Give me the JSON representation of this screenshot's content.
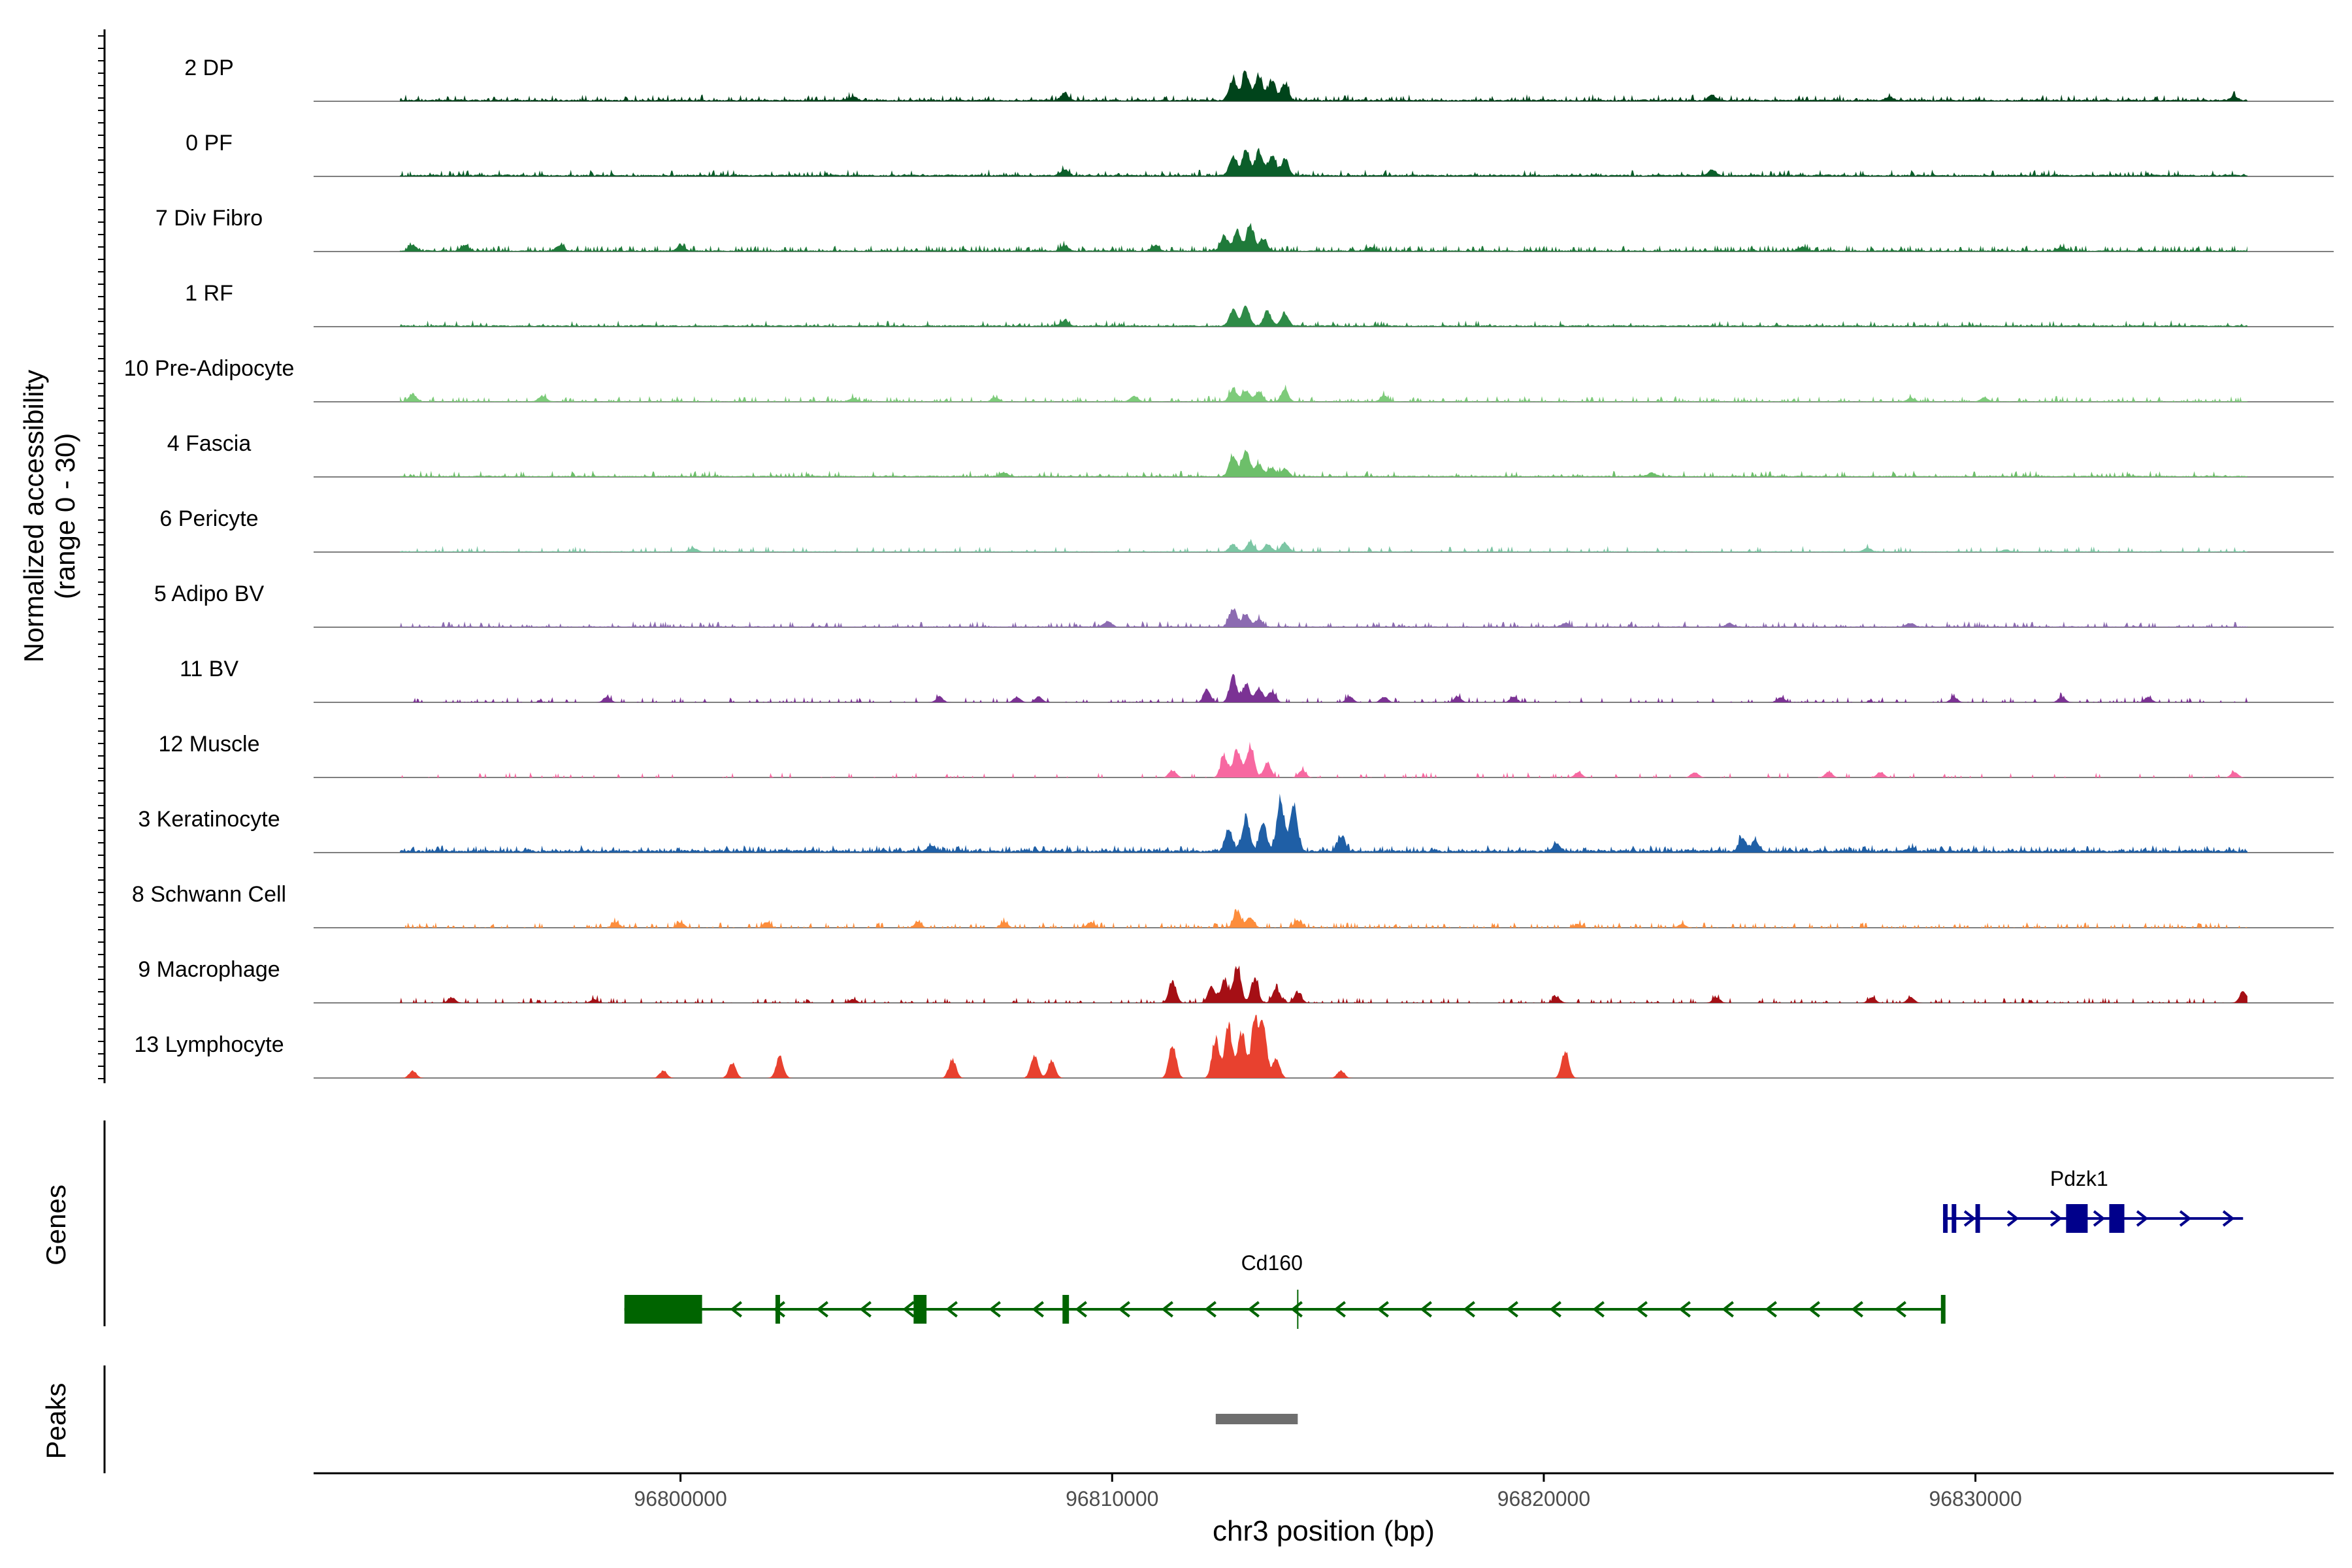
{
  "chart_data": {
    "type": "area",
    "chromosome": "chr3",
    "xlim": [
      96791500,
      96838300
    ],
    "ylim": [
      0,
      30
    ],
    "ylabel_line1": "Normalized accessibility",
    "ylabel_line2": "(range 0 - 30)",
    "xlabel": "chr3 position (bp)",
    "xticks": [
      96800000,
      96810000,
      96820000,
      96830000
    ],
    "xtick_labels": [
      "96800000",
      "96810000",
      "96820000",
      "96830000"
    ],
    "genes_label": "Genes",
    "peaks_label": "Peaks",
    "tracks": [
      {
        "name": "2 DP",
        "color": "#00441b",
        "base": 0.6,
        "noise": 0.18,
        "peaks": [
          [
            96812800,
            12
          ],
          [
            96813100,
            15
          ],
          [
            96813400,
            14
          ],
          [
            96813700,
            11
          ],
          [
            96814000,
            9
          ],
          [
            96808900,
            4
          ],
          [
            96823900,
            3
          ],
          [
            96804000,
            2
          ],
          [
            96828000,
            2
          ],
          [
            96836000,
            2
          ]
        ]
      },
      {
        "name": "0 PF",
        "color": "#0b5e2a",
        "base": 0.6,
        "noise": 0.15,
        "peaks": [
          [
            96812800,
            10
          ],
          [
            96813100,
            14
          ],
          [
            96813400,
            13
          ],
          [
            96813700,
            11
          ],
          [
            96814000,
            9
          ],
          [
            96808900,
            3
          ],
          [
            96823900,
            3
          ]
        ]
      },
      {
        "name": "7 Div Fibro",
        "color": "#1f7a3a",
        "base": 0.4,
        "noise": 0.3,
        "peaks": [
          [
            96812600,
            8
          ],
          [
            96812900,
            10
          ],
          [
            96813200,
            14
          ],
          [
            96813500,
            6
          ],
          [
            96793800,
            3
          ],
          [
            96795000,
            3
          ],
          [
            96797200,
            3
          ],
          [
            96800000,
            3
          ],
          [
            96808900,
            3
          ],
          [
            96811000,
            3
          ],
          [
            96816000,
            2
          ],
          [
            96826000,
            2
          ],
          [
            96832000,
            2
          ]
        ]
      },
      {
        "name": "1 RF",
        "color": "#2e8b47",
        "base": 0.5,
        "noise": 0.12,
        "peaks": [
          [
            96812800,
            9
          ],
          [
            96813100,
            11
          ],
          [
            96813600,
            8
          ],
          [
            96814000,
            7
          ],
          [
            96808900,
            3
          ]
        ]
      },
      {
        "name": "10 Pre-Adipocyte",
        "color": "#7dcb7a",
        "base": 0.2,
        "noise": 0.25,
        "peaks": [
          [
            96812800,
            7
          ],
          [
            96813100,
            6
          ],
          [
            96813400,
            5
          ],
          [
            96814000,
            6
          ],
          [
            96793800,
            4
          ],
          [
            96796800,
            3
          ],
          [
            96804000,
            2
          ],
          [
            96807300,
            2
          ],
          [
            96810500,
            3
          ],
          [
            96816300,
            3
          ],
          [
            96828500,
            2
          ],
          [
            96830200,
            2
          ]
        ]
      },
      {
        "name": "4 Fascia",
        "color": "#6dbf6a",
        "base": 0.4,
        "noise": 0.15,
        "peaks": [
          [
            96812800,
            12
          ],
          [
            96813100,
            14
          ],
          [
            96813400,
            7
          ],
          [
            96813700,
            5
          ],
          [
            96814000,
            4
          ],
          [
            96807500,
            2
          ],
          [
            96822500,
            2
          ]
        ]
      },
      {
        "name": "6 Pericyte",
        "color": "#7cc6a4",
        "base": 0.3,
        "noise": 0.12,
        "peaks": [
          [
            96812800,
            4
          ],
          [
            96813200,
            5
          ],
          [
            96813600,
            4
          ],
          [
            96814000,
            5
          ],
          [
            96800300,
            2
          ],
          [
            96827500,
            2
          ],
          [
            96830700,
            1
          ]
        ]
      },
      {
        "name": "5 Adipo BV",
        "color": "#8c6bb1",
        "base": 0.3,
        "noise": 0.2,
        "peaks": [
          [
            96812800,
            10
          ],
          [
            96813100,
            7
          ],
          [
            96813400,
            4
          ],
          [
            96809900,
            3
          ],
          [
            96820500,
            2
          ],
          [
            96824300,
            2
          ],
          [
            96828500,
            2
          ]
        ]
      },
      {
        "name": "11 BV",
        "color": "#7b3294",
        "base": 0.0,
        "noise": 0.15,
        "peaks": [
          [
            96812800,
            14
          ],
          [
            96813100,
            10
          ],
          [
            96813400,
            8
          ],
          [
            96813700,
            6
          ],
          [
            96812200,
            6
          ],
          [
            96798300,
            3
          ],
          [
            96806000,
            3
          ],
          [
            96807800,
            3
          ],
          [
            96808300,
            3
          ],
          [
            96815500,
            3
          ],
          [
            96816300,
            3
          ],
          [
            96818000,
            3
          ],
          [
            96819300,
            3
          ],
          [
            96825500,
            3
          ],
          [
            96829500,
            3
          ],
          [
            96832000,
            3
          ],
          [
            96834000,
            3
          ]
        ]
      },
      {
        "name": "12 Muscle",
        "color": "#f768a1",
        "base": 0.0,
        "noise": 0.1,
        "peaks": [
          [
            96812600,
            12
          ],
          [
            96812900,
            15
          ],
          [
            96813200,
            18
          ],
          [
            96813600,
            8
          ],
          [
            96811400,
            4
          ],
          [
            96814400,
            4
          ],
          [
            96820800,
            3
          ],
          [
            96823500,
            3
          ],
          [
            96826600,
            3
          ],
          [
            96827800,
            3
          ],
          [
            96836000,
            3
          ]
        ]
      },
      {
        "name": "3 Keratinocyte",
        "color": "#1f5fa6",
        "base": 0.8,
        "noise": 0.3,
        "peaks": [
          [
            96812700,
            12
          ],
          [
            96813100,
            18
          ],
          [
            96813500,
            14
          ],
          [
            96813900,
            28
          ],
          [
            96814200,
            24
          ],
          [
            96815300,
            8
          ],
          [
            96820300,
            4
          ],
          [
            96824600,
            7
          ],
          [
            96824900,
            6
          ],
          [
            96805800,
            3
          ],
          [
            96828500,
            2
          ]
        ]
      },
      {
        "name": "8 Schwann Cell",
        "color": "#fd8d3c",
        "base": 0.0,
        "noise": 0.25,
        "peaks": [
          [
            96812900,
            9
          ],
          [
            96813200,
            6
          ],
          [
            96814300,
            4
          ],
          [
            96798500,
            3
          ],
          [
            96800000,
            3
          ],
          [
            96802000,
            3
          ],
          [
            96805500,
            3
          ],
          [
            96807500,
            3
          ],
          [
            96809500,
            3
          ],
          [
            96820800,
            2
          ],
          [
            96823200,
            2
          ]
        ]
      },
      {
        "name": "9 Macrophage",
        "color": "#a50f15",
        "base": 0.0,
        "noise": 0.2,
        "peaks": [
          [
            96811400,
            12
          ],
          [
            96812300,
            9
          ],
          [
            96812600,
            13
          ],
          [
            96812900,
            20
          ],
          [
            96813300,
            13
          ],
          [
            96813800,
            8
          ],
          [
            96814300,
            6
          ],
          [
            96794700,
            3
          ],
          [
            96798000,
            2
          ],
          [
            96804000,
            2
          ],
          [
            96820300,
            3
          ],
          [
            96824000,
            3
          ],
          [
            96827600,
            3
          ],
          [
            96828500,
            3
          ],
          [
            96836200,
            6
          ]
        ]
      },
      {
        "name": "13 Lymphocyte",
        "color": "#e8412f",
        "base": 0.0,
        "noise": 0.0,
        "peaks": [
          [
            96812400,
            22
          ],
          [
            96812700,
            28
          ],
          [
            96813000,
            25
          ],
          [
            96813300,
            30
          ],
          [
            96813500,
            26
          ],
          [
            96813800,
            10
          ],
          [
            96811400,
            18
          ],
          [
            96801200,
            8
          ],
          [
            96802300,
            12
          ],
          [
            96806300,
            10
          ],
          [
            96808200,
            12
          ],
          [
            96808600,
            10
          ],
          [
            96820500,
            14
          ],
          [
            96793800,
            4
          ],
          [
            96799600,
            4
          ],
          [
            96815300,
            4
          ]
        ]
      }
    ],
    "genes": [
      {
        "name": "Cd160",
        "strand": "-",
        "color": "#006400",
        "start": 96798700,
        "end": 96829300,
        "exons": [
          [
            96798700,
            96800500
          ],
          [
            96802200,
            96802300
          ],
          [
            96805400,
            96805700
          ],
          [
            96808850,
            96809000
          ],
          [
            96829200,
            96829300
          ]
        ]
      },
      {
        "name": "Pdzk1",
        "strand": "+",
        "color": "#00008b",
        "start": 96829250,
        "end": 96836200,
        "exons": [
          [
            96829250,
            96829350
          ],
          [
            96829450,
            96829550
          ],
          [
            96830000,
            96830100
          ],
          [
            96832100,
            96832600
          ],
          [
            96833100,
            96833450
          ]
        ]
      }
    ],
    "peaks": [
      {
        "start": 96812400,
        "end": 96814300
      }
    ]
  }
}
